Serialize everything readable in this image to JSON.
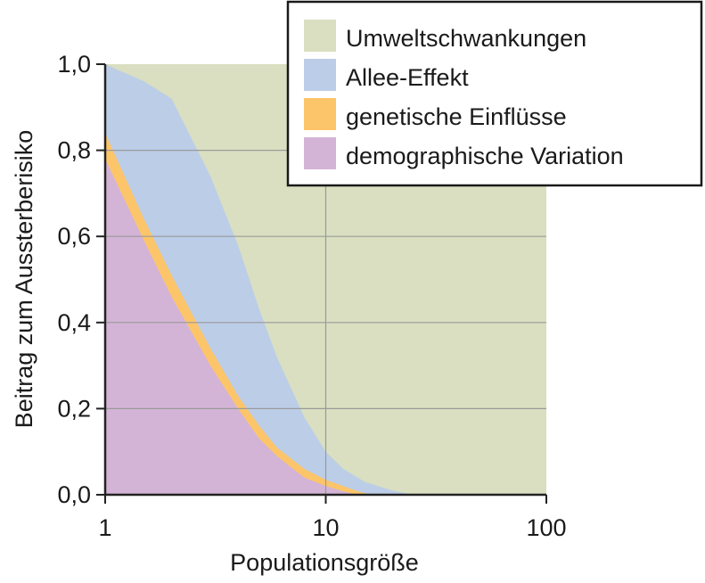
{
  "chart_data": {
    "type": "area",
    "xlabel": "Populationsgröße",
    "ylabel": "Beitrag zum Aussterberisiko",
    "x_scale": "log",
    "xlim": [
      1,
      100
    ],
    "ylim": [
      0,
      1
    ],
    "x_ticks": [
      1,
      10,
      100
    ],
    "x_tick_labels": [
      "1",
      "10",
      "100"
    ],
    "y_ticks": [
      0,
      0.2,
      0.4,
      0.6,
      0.8,
      1.0
    ],
    "y_tick_labels": [
      "0,0",
      "0,2",
      "0,4",
      "0,6",
      "0,8",
      "1,0"
    ],
    "grid": true,
    "legend_position": "top-right",
    "stacked": true,
    "series": [
      {
        "name": "demographische Variation",
        "color": "#d3b4d6",
        "points": [
          [
            1,
            0.78
          ],
          [
            1.5,
            0.59
          ],
          [
            2,
            0.46
          ],
          [
            3,
            0.3
          ],
          [
            4,
            0.2
          ],
          [
            5,
            0.13
          ],
          [
            6,
            0.09
          ],
          [
            8,
            0.04
          ],
          [
            10,
            0.02
          ],
          [
            12,
            0.008
          ],
          [
            14,
            0.0
          ]
        ]
      },
      {
        "name": "genetische Einflüsse",
        "color": "#fcc56a",
        "points": [
          [
            1,
            0.84
          ],
          [
            1.5,
            0.64
          ],
          [
            2,
            0.51
          ],
          [
            3,
            0.34
          ],
          [
            4,
            0.23
          ],
          [
            5,
            0.16
          ],
          [
            6,
            0.11
          ],
          [
            8,
            0.06
          ],
          [
            10,
            0.035
          ],
          [
            12,
            0.02
          ],
          [
            14,
            0.008
          ],
          [
            16,
            0.0
          ]
        ]
      },
      {
        "name": "Allee-Effekt",
        "color": "#bccde8",
        "points": [
          [
            1,
            1.0
          ],
          [
            1.5,
            0.96
          ],
          [
            2,
            0.92
          ],
          [
            3,
            0.74
          ],
          [
            4,
            0.58
          ],
          [
            5,
            0.43
          ],
          [
            6,
            0.32
          ],
          [
            8,
            0.18
          ],
          [
            10,
            0.1
          ],
          [
            12,
            0.06
          ],
          [
            15,
            0.03
          ],
          [
            20,
            0.01
          ],
          [
            25,
            0.0
          ]
        ]
      },
      {
        "name": "Umweltschwankungen",
        "color": "#d9dfc0",
        "points": [
          [
            1,
            1.0
          ],
          [
            100,
            1.0
          ]
        ]
      }
    ],
    "legend_order": [
      "Umweltschwankungen",
      "Allee-Effekt",
      "genetische Einflüsse",
      "demographische Variation"
    ]
  }
}
